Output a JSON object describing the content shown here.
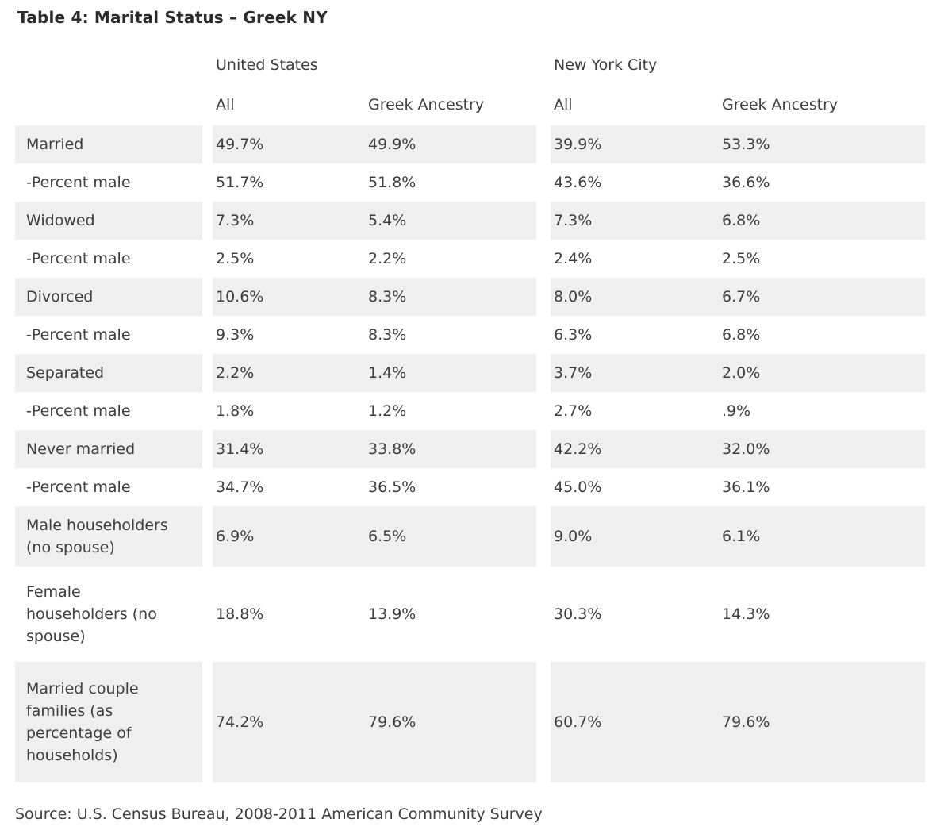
{
  "title": "Table 4: Marital Status – Greek NY",
  "source": "Source: U.S. Census Bureau, 2008-2011 American Community Survey",
  "colors": {
    "stripe": "#efefef",
    "text": "#3d3d3d",
    "title": "#2b2b2b",
    "page_bg": "#ffffff"
  },
  "table": {
    "group_headers": [
      "United States",
      "New York City"
    ],
    "sub_headers": [
      "All",
      "Greek Ancestry",
      "All",
      "Greek Ancestry"
    ],
    "rows": [
      {
        "label": "Married",
        "us_all": "49.7%",
        "us_greek": "49.9%",
        "nyc_all": "39.9%",
        "nyc_greek": "53.3%",
        "shaded": true
      },
      {
        "label": "-Percent male",
        "us_all": "51.7%",
        "us_greek": "51.8%",
        "nyc_all": "43.6%",
        "nyc_greek": "36.6%",
        "shaded": false
      },
      {
        "label": "Widowed",
        "us_all": "7.3%",
        "us_greek": "5.4%",
        "nyc_all": "7.3%",
        "nyc_greek": "6.8%",
        "shaded": true
      },
      {
        "label": "-Percent male",
        "us_all": "2.5%",
        "us_greek": "2.2%",
        "nyc_all": "2.4%",
        "nyc_greek": "2.5%",
        "shaded": false
      },
      {
        "label": "Divorced",
        "us_all": "10.6%",
        "us_greek": "8.3%",
        "nyc_all": "8.0%",
        "nyc_greek": "6.7%",
        "shaded": true
      },
      {
        "label": "-Percent male",
        "us_all": "9.3%",
        "us_greek": "8.3%",
        "nyc_all": "6.3%",
        "nyc_greek": "6.8%",
        "shaded": false
      },
      {
        "label": "Separated",
        "us_all": "2.2%",
        "us_greek": "1.4%",
        "nyc_all": "3.7%",
        "nyc_greek": "2.0%",
        "shaded": true
      },
      {
        "label": "-Percent male",
        "us_all": "1.8%",
        "us_greek": "1.2%",
        "nyc_all": "2.7%",
        "nyc_greek": ".9%",
        "shaded": false
      },
      {
        "label": "Never married",
        "us_all": "31.4%",
        "us_greek": "33.8%",
        "nyc_all": "42.2%",
        "nyc_greek": "32.0%",
        "shaded": true
      },
      {
        "label": "-Percent male",
        "us_all": "34.7%",
        "us_greek": "36.5%",
        "nyc_all": "45.0%",
        "nyc_greek": "36.1%",
        "shaded": false
      },
      {
        "label": "Male householders (no spouse)",
        "us_all": "6.9%",
        "us_greek": "6.5%",
        "nyc_all": "9.0%",
        "nyc_greek": "6.1%",
        "shaded": true
      },
      {
        "label": "Female householders (no spouse)",
        "us_all": "18.8%",
        "us_greek": "13.9%",
        "nyc_all": "30.3%",
        "nyc_greek": "14.3%",
        "shaded": false
      },
      {
        "label": "Married couple families (as percentage of households)",
        "us_all": "74.2%",
        "us_greek": "79.6%",
        "nyc_all": "60.7%",
        "nyc_greek": "79.6%",
        "shaded": true
      }
    ]
  },
  "chart_data": {
    "type": "table",
    "title": "Table 4: Marital Status – Greek NY",
    "column_groups": [
      "United States",
      "New York City"
    ],
    "columns": [
      "United States - All",
      "United States - Greek Ancestry",
      "New York City - All",
      "New York City - Greek Ancestry"
    ],
    "rows": [
      {
        "label": "Married",
        "values": [
          49.7,
          49.9,
          39.9,
          53.3
        ]
      },
      {
        "label": "-Percent male (married)",
        "values": [
          51.7,
          51.8,
          43.6,
          36.6
        ]
      },
      {
        "label": "Widowed",
        "values": [
          7.3,
          5.4,
          7.3,
          6.8
        ]
      },
      {
        "label": "-Percent male (widowed)",
        "values": [
          2.5,
          2.2,
          2.4,
          2.5
        ]
      },
      {
        "label": "Divorced",
        "values": [
          10.6,
          8.3,
          8.0,
          6.7
        ]
      },
      {
        "label": "-Percent male (divorced)",
        "values": [
          9.3,
          8.3,
          6.3,
          6.8
        ]
      },
      {
        "label": "Separated",
        "values": [
          2.2,
          1.4,
          3.7,
          2.0
        ]
      },
      {
        "label": "-Percent male (separated)",
        "values": [
          1.8,
          1.2,
          2.7,
          0.9
        ]
      },
      {
        "label": "Never married",
        "values": [
          31.4,
          33.8,
          42.2,
          32.0
        ]
      },
      {
        "label": "-Percent male (never married)",
        "values": [
          34.7,
          36.5,
          45.0,
          36.1
        ]
      },
      {
        "label": "Male householders (no spouse)",
        "values": [
          6.9,
          6.5,
          9.0,
          6.1
        ]
      },
      {
        "label": "Female householders (no spouse)",
        "values": [
          18.8,
          13.9,
          30.3,
          14.3
        ]
      },
      {
        "label": "Married couple families (as percentage of households)",
        "values": [
          74.2,
          79.6,
          60.7,
          79.6
        ]
      }
    ],
    "units": "percent",
    "source": "Source: U.S. Census Bureau, 2008-2011 American Community Survey"
  }
}
